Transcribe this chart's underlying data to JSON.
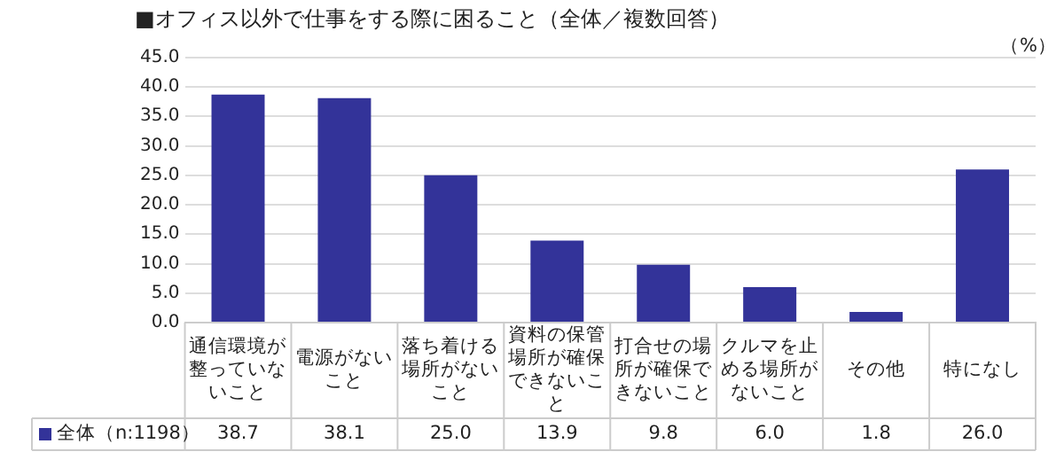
{
  "chart_data": {
    "type": "bar",
    "title": "■オフィス以外で仕事をする際に困ること（全体／複数回答）",
    "categories": [
      "通信環境が整っていないこと",
      "電源がないこと",
      "落ち着ける場所がないこと",
      "資料の保管場所が確保できないこと",
      "打合せの場所が確保できないこと",
      "クルマを止める場所がないこと",
      "その他",
      "特になし"
    ],
    "series": [
      {
        "name": "全体（n:1198）",
        "color": "#333399",
        "values": [
          38.7,
          38.1,
          25.0,
          13.9,
          9.8,
          6.0,
          1.8,
          26.0
        ]
      }
    ],
    "value_labels": [
      "38.7",
      "38.1",
      "25.0",
      "13.9",
      "9.8",
      "6.0",
      "1.8",
      "26.0"
    ],
    "ylim": [
      0,
      45
    ],
    "yticks": [
      {
        "value": 0,
        "label": "0.0"
      },
      {
        "value": 5,
        "label": "5.0"
      },
      {
        "value": 10,
        "label": "10.0"
      },
      {
        "value": 15,
        "label": "15.0"
      },
      {
        "value": 20,
        "label": "20.0"
      },
      {
        "value": 25,
        "label": "25.0"
      },
      {
        "value": 30,
        "label": "30.0"
      },
      {
        "value": 35,
        "label": "35.0"
      },
      {
        "value": 40,
        "label": "40.0"
      },
      {
        "value": 45,
        "label": "45.0"
      }
    ],
    "grid": "y",
    "legend": "bottom left",
    "annotations": [
      "（%）"
    ]
  }
}
